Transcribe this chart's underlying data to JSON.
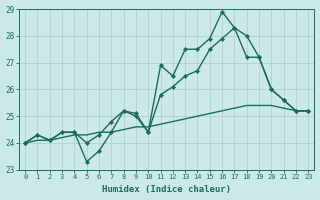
{
  "xlabel": "Humidex (Indice chaleur)",
  "background_color": "#cce9e9",
  "grid_color": "#b0d0d0",
  "line_color": "#1a6b5a",
  "xlim": [
    -0.5,
    23.5
  ],
  "ylim": [
    23,
    29
  ],
  "yticks": [
    23,
    24,
    25,
    26,
    27,
    28,
    29
  ],
  "xticks": [
    0,
    1,
    2,
    3,
    4,
    5,
    6,
    7,
    8,
    9,
    10,
    11,
    12,
    13,
    14,
    15,
    16,
    17,
    18,
    19,
    20,
    21,
    22,
    23
  ],
  "series": [
    {
      "y": [
        24.0,
        24.3,
        24.1,
        24.4,
        24.4,
        23.3,
        23.7,
        24.4,
        25.2,
        25.1,
        24.4,
        26.9,
        26.5,
        27.5,
        27.5,
        27.9,
        28.9,
        28.3,
        28.0,
        27.2,
        26.0,
        25.6,
        25.2,
        25.2
      ],
      "marker": true,
      "linewidth": 1.0
    },
    {
      "y": [
        24.0,
        24.1,
        24.1,
        24.2,
        24.3,
        24.3,
        24.4,
        24.4,
        24.5,
        24.6,
        24.6,
        24.7,
        24.8,
        24.9,
        25.0,
        25.1,
        25.2,
        25.3,
        25.4,
        25.4,
        25.4,
        25.3,
        25.2,
        25.2
      ],
      "marker": false,
      "linewidth": 1.0
    },
    {
      "y": [
        24.0,
        24.3,
        24.1,
        24.4,
        24.4,
        24.0,
        24.3,
        24.8,
        25.2,
        25.0,
        24.4,
        25.8,
        26.1,
        26.5,
        26.7,
        27.5,
        27.9,
        28.3,
        27.2,
        27.2,
        26.0,
        25.6,
        25.2,
        25.2
      ],
      "marker": true,
      "linewidth": 1.0
    }
  ]
}
